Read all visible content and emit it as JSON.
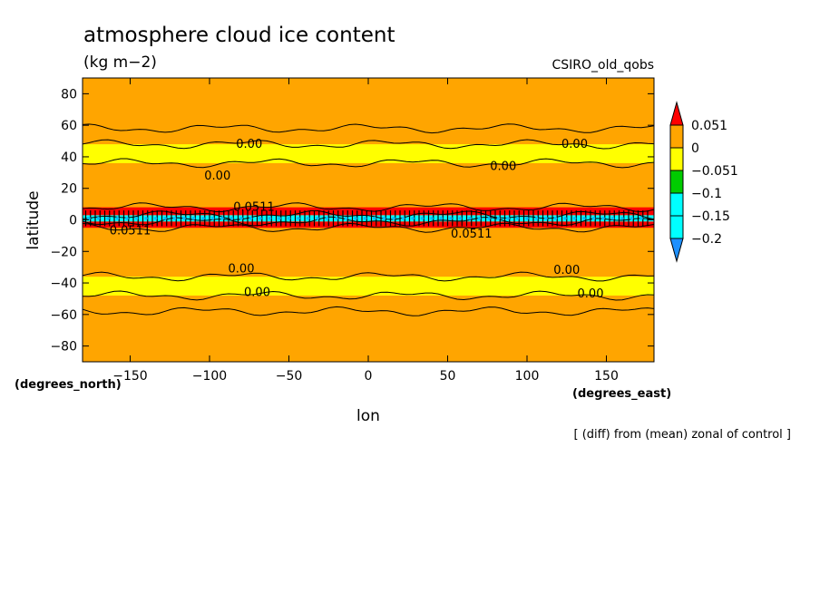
{
  "chart_data": {
    "type": "heatmap",
    "title": "atmosphere cloud ice content",
    "subtitle": "(kg m−2)",
    "model": "CSIRO_old_qobs",
    "xlabel": "lon",
    "ylabel": "latitude",
    "x_units": "(degrees_east)",
    "y_units": "(degrees_north)",
    "footnote": "[ (diff) from (mean) zonal of control ]",
    "xlim": [
      -180,
      180
    ],
    "ylim": [
      -90,
      90
    ],
    "x_ticks": [
      -150,
      -100,
      -50,
      0,
      50,
      100,
      150
    ],
    "y_ticks": [
      80,
      60,
      40,
      20,
      0,
      -20,
      -40,
      -60,
      -80
    ],
    "colorbar": {
      "levels": [
        "0.051",
        "0",
        "−0.051",
        "−0.1",
        "−0.15",
        "−0.2"
      ],
      "colors": [
        "#ff0000",
        "#ffa500",
        "#ffff00",
        "#00cc00",
        "#00ffff",
        "#1e90ff"
      ],
      "extend": "both"
    },
    "zonal_bands": [
      {
        "lat": [
          -90,
          -48
        ],
        "color": "#ffa500"
      },
      {
        "lat": [
          -48,
          -36
        ],
        "color": "#ffff00"
      },
      {
        "lat": [
          -36,
          -5
        ],
        "color": "#ffa500"
      },
      {
        "lat": [
          -5,
          -1
        ],
        "color": "#ff0000"
      },
      {
        "lat": [
          -1,
          3
        ],
        "color": "#00ffff"
      },
      {
        "lat": [
          3,
          8
        ],
        "color": "#ff0000"
      },
      {
        "lat": [
          8,
          36
        ],
        "color": "#ffa500"
      },
      {
        "lat": [
          36,
          48
        ],
        "color": "#ffff00"
      },
      {
        "lat": [
          48,
          90
        ],
        "color": "#ffa500"
      }
    ],
    "contour_labels": [
      {
        "text": "0.00",
        "lon": -75,
        "lat": 48
      },
      {
        "text": "0.00",
        "lon": 130,
        "lat": 48
      },
      {
        "text": "0.00",
        "lon": 85,
        "lat": 34
      },
      {
        "text": "0.00",
        "lon": -95,
        "lat": 28
      },
      {
        "text": "0.00",
        "lon": -80,
        "lat": -31
      },
      {
        "text": "0.00",
        "lon": 125,
        "lat": -32
      },
      {
        "text": "0.00",
        "lon": -70,
        "lat": -46
      },
      {
        "text": "0.00",
        "lon": 140,
        "lat": -47
      },
      {
        "text": "0.0511",
        "lon": -72,
        "lat": 8
      },
      {
        "text": "0.0511",
        "lon": -150,
        "lat": -7
      },
      {
        "text": "0.0511",
        "lon": 65,
        "lat": -9
      }
    ]
  }
}
